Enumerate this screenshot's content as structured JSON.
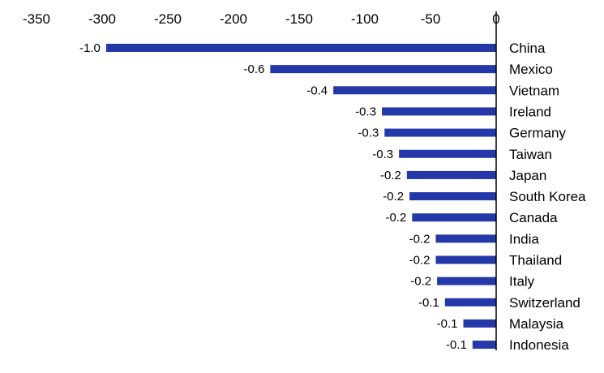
{
  "chart_data": {
    "type": "bar",
    "orientation": "horizontal",
    "title": "",
    "xlabel": "",
    "ylabel": "",
    "xlim": [
      -350,
      0
    ],
    "x_ticks": [
      -350,
      -300,
      -250,
      -200,
      -150,
      -100,
      -50,
      0
    ],
    "x_tick_labels": [
      "-350",
      "-300",
      "-250",
      "-200",
      "-150",
      "-100",
      "-50",
      "0"
    ],
    "x_axis_position": "top",
    "grid": false,
    "legend": "none",
    "categories": [
      "China",
      "Mexico",
      "Vietnam",
      "Ireland",
      "Germany",
      "Taiwan",
      "Japan",
      "South Korea",
      "Canada",
      "India",
      "Thailand",
      "Italy",
      "Switzerland",
      "Malaysia",
      "Indonesia"
    ],
    "values": [
      -297,
      -172,
      -124,
      -87,
      -85,
      -74,
      -68,
      -66,
      -64,
      -46,
      -46,
      -45,
      -39,
      -25,
      -18
    ],
    "data_labels": [
      "-1.0",
      "-0.6",
      "-0.4",
      "-0.3",
      "-0.3",
      "-0.3",
      "-0.2",
      "-0.2",
      "-0.2",
      "-0.2",
      "-0.2",
      "-0.2",
      "-0.1",
      "-0.1",
      "-0.1"
    ],
    "bar_color": "#2438A8",
    "axis_color": "#000000"
  }
}
